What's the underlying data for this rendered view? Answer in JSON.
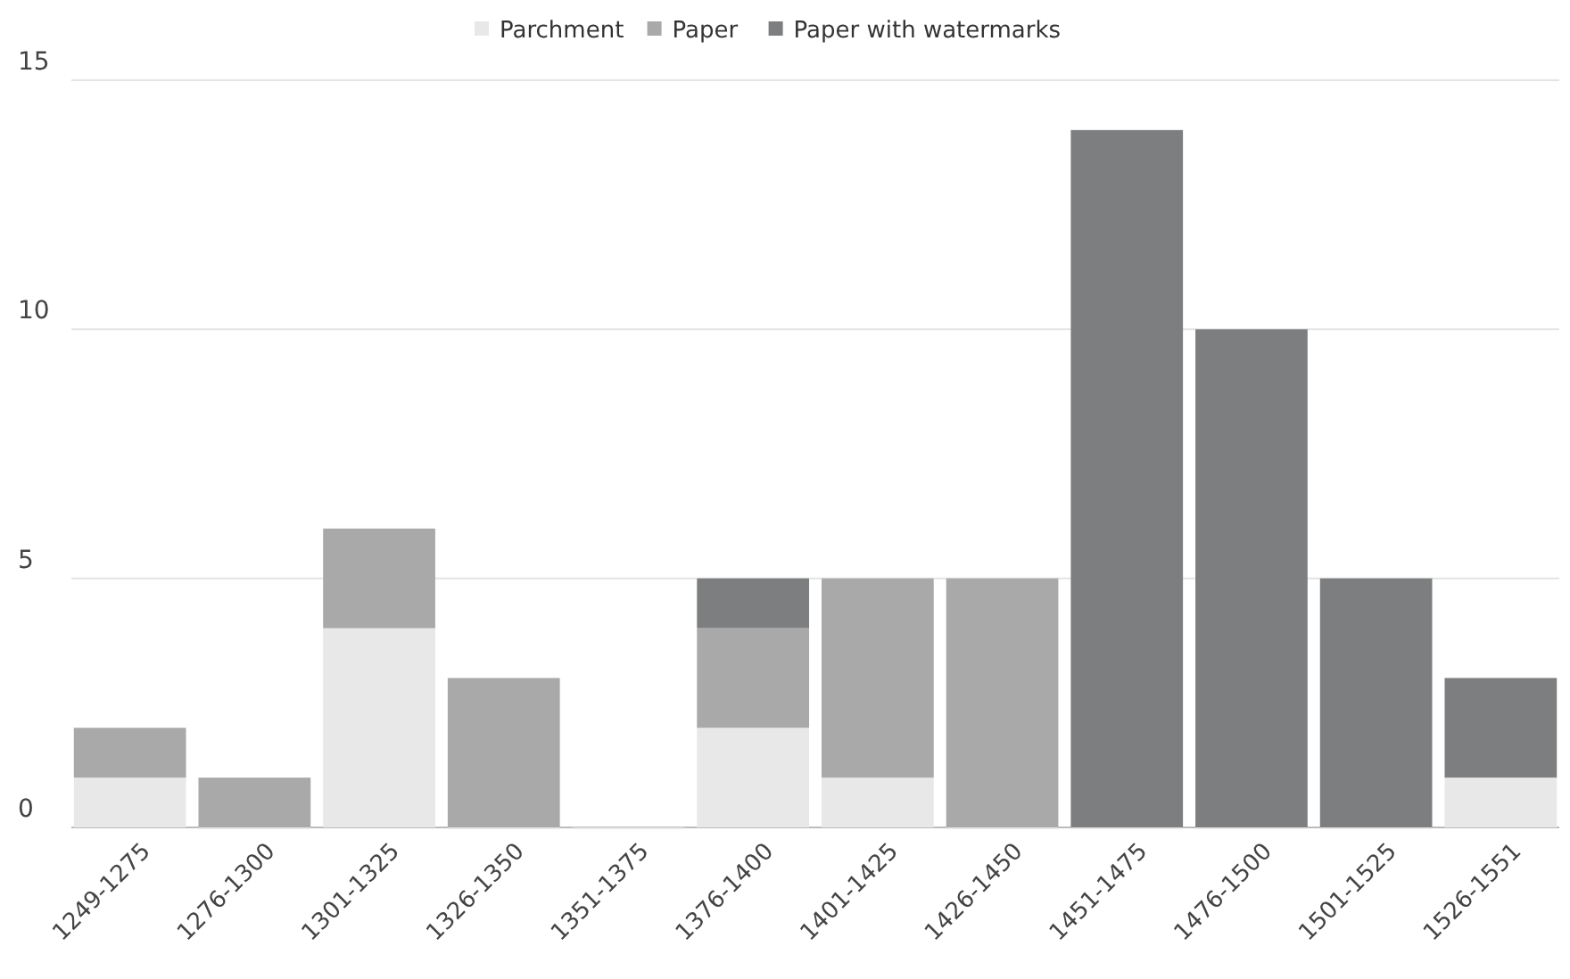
{
  "chart_data": {
    "type": "bar",
    "stacked": true,
    "categories": [
      "1249-1275",
      "1276-1300",
      "1301-1325",
      "1326-1350",
      "1351-1375",
      "1376-1400",
      "1401-1425",
      "1426-1450",
      "1451-1475",
      "1476-1500",
      "1501-1525",
      "1526-1551"
    ],
    "series": [
      {
        "name": "Parchment",
        "color": "#e8e8e8",
        "values": [
          1,
          0,
          4,
          0,
          0,
          2,
          1,
          0,
          0,
          0,
          0,
          1
        ]
      },
      {
        "name": "Paper",
        "color": "#a9a9a9",
        "values": [
          1,
          1,
          2,
          3,
          0,
          2,
          4,
          5,
          0,
          0,
          0,
          0
        ]
      },
      {
        "name": "Paper with watermarks",
        "color": "#7d7e80",
        "values": [
          0,
          0,
          0,
          0,
          0,
          1,
          0,
          0,
          14,
          10,
          5,
          2
        ]
      }
    ],
    "ylim": [
      0,
      15
    ],
    "yticks": [
      0,
      5,
      10,
      15
    ],
    "grid": "y",
    "legend": "top"
  }
}
